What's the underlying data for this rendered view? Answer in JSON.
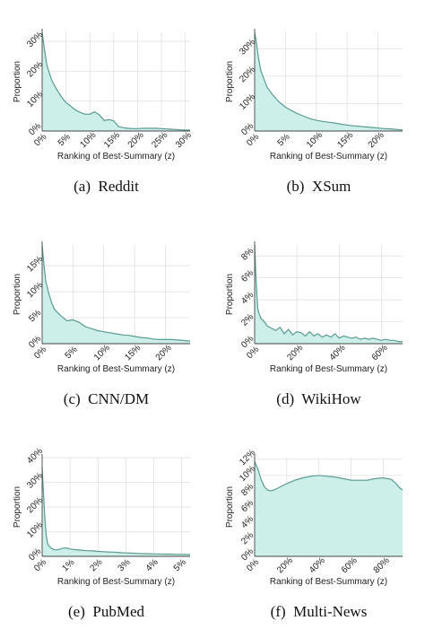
{
  "chart_data": [
    {
      "type": "area",
      "caption": "(a)  Reddit",
      "xlabel": "Ranking of Best-Summary (z)",
      "ylabel": "Proportion",
      "xlim": [
        0,
        31
      ],
      "ylim": [
        0,
        33
      ],
      "xticks": [
        0,
        5,
        10,
        15,
        20,
        25,
        30
      ],
      "xtick_labels": [
        "0%",
        "5%",
        "10%",
        "15%",
        "20%",
        "25%",
        "30%"
      ],
      "yticks": [
        0,
        10,
        20,
        30
      ],
      "ytick_labels": [
        "0%",
        "10%",
        "20%",
        "30%"
      ],
      "grid": true,
      "x": [
        0,
        0.5,
        1,
        2,
        3,
        4,
        5,
        6,
        7,
        8,
        9,
        10,
        11,
        12,
        13,
        14,
        15,
        16,
        17,
        18,
        19,
        20,
        21,
        22,
        23,
        24,
        25,
        26,
        27,
        28,
        29,
        30,
        31
      ],
      "y": [
        33,
        27,
        22,
        17,
        14,
        11.5,
        9.5,
        8.3,
        7,
        6.2,
        5.6,
        5.6,
        6.4,
        5.4,
        3.5,
        3.8,
        3.4,
        1.5,
        1.1,
        0.9,
        0.8,
        0.8,
        0.9,
        0.9,
        0.9,
        0.9,
        0.8,
        0.7,
        0.6,
        0.5,
        0.4,
        0.3,
        0.3
      ]
    },
    {
      "type": "area",
      "caption": "(b)  XSum",
      "xlabel": "Ranking of Best-Summary (z)",
      "ylabel": "Proportion",
      "xlim": [
        0,
        24
      ],
      "ylim": [
        0,
        36
      ],
      "xticks": [
        0,
        5,
        10,
        15,
        20
      ],
      "xtick_labels": [
        "0%",
        "5%",
        "10%",
        "15%",
        "20%"
      ],
      "yticks": [
        0,
        10,
        20,
        30
      ],
      "ytick_labels": [
        "0%",
        "10%",
        "20%",
        "30%"
      ],
      "grid": true,
      "x": [
        0,
        0.3,
        0.6,
        1,
        1.5,
        2,
        3,
        4,
        5,
        6,
        7,
        8,
        9,
        10,
        11,
        12,
        13,
        14,
        15,
        16,
        17,
        18,
        19,
        20,
        21,
        22,
        23,
        24
      ],
      "y": [
        36,
        32,
        27,
        22,
        19,
        16,
        13,
        10.5,
        8.7,
        7.4,
        6.3,
        5.4,
        4.5,
        3.9,
        3.5,
        3.2,
        2.9,
        2.5,
        2.2,
        1.9,
        1.7,
        1.5,
        1.3,
        1.1,
        0.9,
        0.8,
        0.6,
        0.4
      ]
    },
    {
      "type": "area",
      "caption": "(c)  CNN/DM",
      "xlabel": "Ranking of Best-Summary (z)",
      "ylabel": "Proportion",
      "xlim": [
        0,
        24
      ],
      "ylim": [
        0,
        19
      ],
      "xticks": [
        0,
        5,
        10,
        15,
        20
      ],
      "xtick_labels": [
        "0%",
        "5%",
        "10%",
        "15%",
        "20%"
      ],
      "yticks": [
        0,
        5,
        10,
        15
      ],
      "ytick_labels": [
        "0%",
        "5%",
        "10%",
        "15%"
      ],
      "grid": true,
      "x": [
        0,
        0.3,
        0.6,
        1,
        1.5,
        2,
        3,
        4,
        5,
        6,
        7,
        8,
        9,
        10,
        11,
        12,
        13,
        14,
        15,
        16,
        17,
        18,
        19,
        20,
        21,
        22,
        23,
        24
      ],
      "y": [
        19,
        15,
        12,
        10,
        8,
        6.6,
        5.4,
        4.4,
        4.6,
        4.1,
        3.3,
        2.9,
        2.5,
        2.3,
        2.1,
        1.9,
        1.7,
        1.6,
        1.4,
        1.2,
        1.1,
        0.9,
        0.8,
        0.8,
        0.8,
        0.7,
        0.6,
        0.5
      ]
    },
    {
      "type": "area",
      "caption": "(d)  WikiHow",
      "xlabel": "Ranking of Best-Summary (z)",
      "ylabel": "Proportion",
      "xlim": [
        0,
        70
      ],
      "ylim": [
        0,
        9
      ],
      "xticks": [
        0,
        20,
        40,
        60
      ],
      "xtick_labels": [
        "0%",
        "20%",
        "40%",
        "60%"
      ],
      "yticks": [
        0,
        2,
        4,
        6,
        8
      ],
      "ytick_labels": [
        "0%",
        "2%",
        "4%",
        "6%",
        "8%"
      ],
      "grid": true,
      "x": [
        0,
        0.5,
        1,
        1.5,
        2,
        3,
        4,
        5,
        6,
        8,
        10,
        12,
        14,
        16,
        18,
        20,
        22,
        24,
        26,
        28,
        30,
        32,
        34,
        36,
        38,
        40,
        42,
        44,
        46,
        48,
        50,
        52,
        54,
        56,
        58,
        60,
        62,
        64,
        66,
        68,
        70
      ],
      "y": [
        9,
        6.5,
        4.6,
        3.2,
        2.8,
        2.3,
        2.1,
        1.9,
        1.6,
        1.4,
        1.2,
        1.5,
        0.9,
        1.3,
        0.8,
        1.1,
        1.0,
        0.7,
        1.1,
        0.7,
        0.9,
        0.6,
        0.8,
        0.6,
        0.9,
        0.5,
        0.7,
        0.6,
        0.5,
        0.6,
        0.4,
        0.5,
        0.4,
        0.5,
        0.4,
        0.3,
        0.4,
        0.3,
        0.3,
        0.2,
        0.2
      ]
    },
    {
      "type": "area",
      "caption": "(e)  PubMed",
      "xlabel": "Ranking of Best-Summary (z)",
      "ylabel": "Proportion",
      "xlim": [
        0,
        5.3
      ],
      "ylim": [
        0,
        40
      ],
      "xticks": [
        0,
        1,
        2,
        3,
        4,
        5
      ],
      "xtick_labels": [
        "0%",
        "1%",
        "2%",
        "3%",
        "4%",
        "5%"
      ],
      "yticks": [
        0,
        10,
        20,
        30,
        40
      ],
      "ytick_labels": [
        "0%",
        "10%",
        "20%",
        "30%",
        "40%"
      ],
      "grid": true,
      "x": [
        0,
        0.05,
        0.1,
        0.15,
        0.2,
        0.3,
        0.4,
        0.5,
        0.6,
        0.7,
        0.8,
        0.9,
        1.0,
        1.2,
        1.4,
        1.6,
        1.8,
        2.0,
        2.2,
        2.4,
        2.6,
        2.8,
        3.0,
        3.2,
        3.4,
        3.6,
        3.8,
        4.0,
        4.2,
        4.4,
        4.6,
        4.8,
        5.0,
        5.2,
        5.3
      ],
      "y": [
        36,
        25,
        15,
        8,
        5,
        3.5,
        2.8,
        2.6,
        2.8,
        3.2,
        3.4,
        3.3,
        3.0,
        2.7,
        2.5,
        2.3,
        2.2,
        2.0,
        1.9,
        1.8,
        1.7,
        1.5,
        1.4,
        1.3,
        1.2,
        1.1,
        1.1,
        1.0,
        1.0,
        0.9,
        0.9,
        0.8,
        0.8,
        0.8,
        0.7
      ]
    },
    {
      "type": "area",
      "caption": "(f)  Multi-News",
      "xlabel": "Ranking of Best-Summary (z)",
      "ylabel": "Proportion",
      "xlim": [
        0,
        92
      ],
      "ylim": [
        0,
        12.2
      ],
      "xticks": [
        0,
        20,
        40,
        60,
        80
      ],
      "xtick_labels": [
        "0%",
        "20%",
        "40%",
        "60%",
        "80%"
      ],
      "yticks": [
        0,
        2,
        4,
        6,
        8,
        10,
        12
      ],
      "ytick_labels": [
        "0%",
        "2%",
        "4%",
        "6%",
        "8%",
        "10%",
        "12%"
      ],
      "grid": true,
      "x": [
        0,
        2,
        4,
        6,
        8,
        10,
        12,
        16,
        20,
        25,
        30,
        35,
        40,
        45,
        50,
        55,
        60,
        65,
        70,
        75,
        80,
        85,
        88,
        90,
        92
      ],
      "y": [
        11.7,
        10.8,
        9.5,
        8.6,
        8.2,
        8.1,
        8.2,
        8.6,
        9.0,
        9.4,
        9.7,
        9.9,
        10.0,
        9.9,
        9.8,
        9.6,
        9.4,
        9.4,
        9.4,
        9.6,
        9.7,
        9.5,
        9.0,
        8.5,
        8.2
      ]
    }
  ],
  "colors": {
    "fill": "#cdefea",
    "line": "#5b9a92",
    "axis": "#444444",
    "grid": "#dcdcdc"
  }
}
